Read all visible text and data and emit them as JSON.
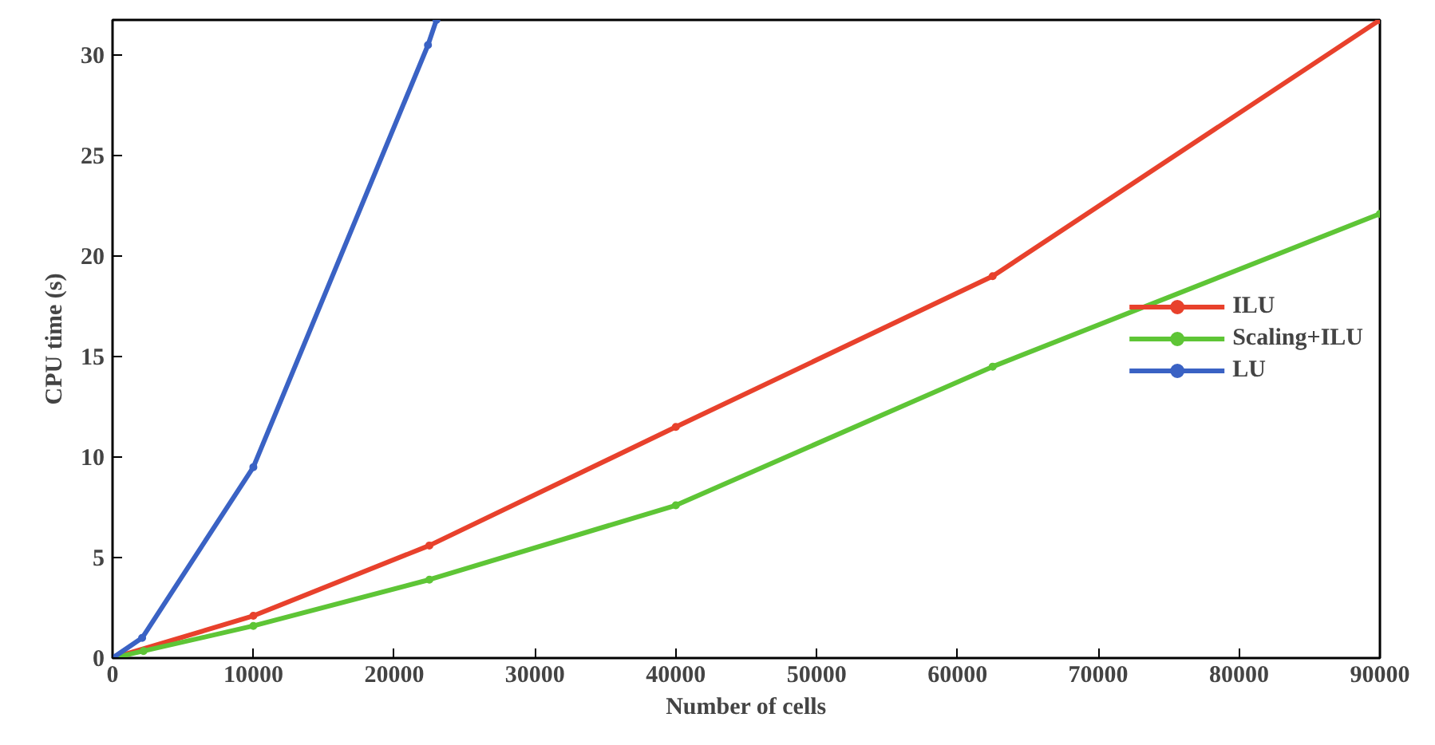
{
  "chart_data": {
    "type": "line",
    "xlabel": "Number of cells",
    "ylabel": "CPU time (s)",
    "x": [
      0,
      2200,
      10000,
      22500,
      40000,
      62500,
      90000
    ],
    "series": [
      {
        "name": "ILU",
        "color": "#e8412c",
        "x": [
          0,
          10000,
          22500,
          40000,
          62500,
          90000
        ],
        "values": [
          0,
          2.1,
          5.6,
          11.5,
          19,
          31.75
        ]
      },
      {
        "name": "Scaling+ILU",
        "color": "#5ec536",
        "values": [
          0,
          0.35,
          1.6,
          3.9,
          7.6,
          14.5,
          22.1
        ]
      },
      {
        "name": "LU",
        "color": "#3a62c4",
        "x": [
          0,
          2100,
          10000,
          22400,
          23000
        ],
        "values": [
          0,
          1.0,
          9.5,
          30.5,
          31.75
        ]
      }
    ],
    "xlim": [
      0,
      90000
    ],
    "ylim": [
      0,
      31.75
    ],
    "xticks": [
      0,
      10000,
      20000,
      30000,
      40000,
      50000,
      60000,
      70000,
      80000,
      90000
    ],
    "yticks": [
      0,
      5,
      10,
      15,
      20,
      25,
      30
    ],
    "grid": false,
    "legend": "right",
    "marker": "circle",
    "line_style": "solid"
  }
}
